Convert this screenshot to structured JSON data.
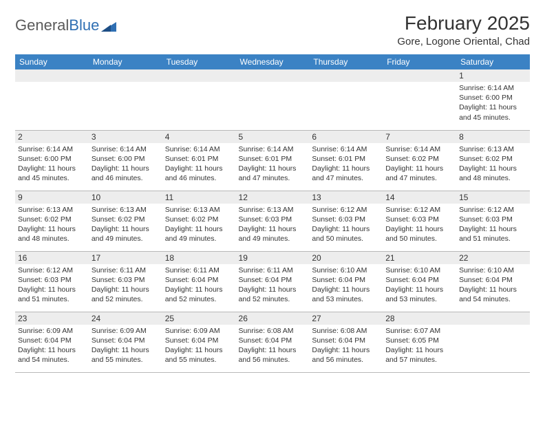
{
  "logo": {
    "word1": "General",
    "word2": "Blue"
  },
  "title": "February 2025",
  "location": "Gore, Logone Oriental, Chad",
  "colors": {
    "header_bg": "#3b82c4",
    "header_text": "#ffffff",
    "daynum_bg": "#ededed",
    "cell_border": "#b8b8b8",
    "text": "#333333",
    "logo_gray": "#5a5a5a",
    "logo_blue": "#2f6fb3"
  },
  "day_headers": [
    "Sunday",
    "Monday",
    "Tuesday",
    "Wednesday",
    "Thursday",
    "Friday",
    "Saturday"
  ],
  "weeks": [
    [
      null,
      null,
      null,
      null,
      null,
      null,
      {
        "n": "1",
        "sunrise": "Sunrise: 6:14 AM",
        "sunset": "Sunset: 6:00 PM",
        "dl1": "Daylight: 11 hours",
        "dl2": "and 45 minutes."
      }
    ],
    [
      {
        "n": "2",
        "sunrise": "Sunrise: 6:14 AM",
        "sunset": "Sunset: 6:00 PM",
        "dl1": "Daylight: 11 hours",
        "dl2": "and 45 minutes."
      },
      {
        "n": "3",
        "sunrise": "Sunrise: 6:14 AM",
        "sunset": "Sunset: 6:00 PM",
        "dl1": "Daylight: 11 hours",
        "dl2": "and 46 minutes."
      },
      {
        "n": "4",
        "sunrise": "Sunrise: 6:14 AM",
        "sunset": "Sunset: 6:01 PM",
        "dl1": "Daylight: 11 hours",
        "dl2": "and 46 minutes."
      },
      {
        "n": "5",
        "sunrise": "Sunrise: 6:14 AM",
        "sunset": "Sunset: 6:01 PM",
        "dl1": "Daylight: 11 hours",
        "dl2": "and 47 minutes."
      },
      {
        "n": "6",
        "sunrise": "Sunrise: 6:14 AM",
        "sunset": "Sunset: 6:01 PM",
        "dl1": "Daylight: 11 hours",
        "dl2": "and 47 minutes."
      },
      {
        "n": "7",
        "sunrise": "Sunrise: 6:14 AM",
        "sunset": "Sunset: 6:02 PM",
        "dl1": "Daylight: 11 hours",
        "dl2": "and 47 minutes."
      },
      {
        "n": "8",
        "sunrise": "Sunrise: 6:13 AM",
        "sunset": "Sunset: 6:02 PM",
        "dl1": "Daylight: 11 hours",
        "dl2": "and 48 minutes."
      }
    ],
    [
      {
        "n": "9",
        "sunrise": "Sunrise: 6:13 AM",
        "sunset": "Sunset: 6:02 PM",
        "dl1": "Daylight: 11 hours",
        "dl2": "and 48 minutes."
      },
      {
        "n": "10",
        "sunrise": "Sunrise: 6:13 AM",
        "sunset": "Sunset: 6:02 PM",
        "dl1": "Daylight: 11 hours",
        "dl2": "and 49 minutes."
      },
      {
        "n": "11",
        "sunrise": "Sunrise: 6:13 AM",
        "sunset": "Sunset: 6:02 PM",
        "dl1": "Daylight: 11 hours",
        "dl2": "and 49 minutes."
      },
      {
        "n": "12",
        "sunrise": "Sunrise: 6:13 AM",
        "sunset": "Sunset: 6:03 PM",
        "dl1": "Daylight: 11 hours",
        "dl2": "and 49 minutes."
      },
      {
        "n": "13",
        "sunrise": "Sunrise: 6:12 AM",
        "sunset": "Sunset: 6:03 PM",
        "dl1": "Daylight: 11 hours",
        "dl2": "and 50 minutes."
      },
      {
        "n": "14",
        "sunrise": "Sunrise: 6:12 AM",
        "sunset": "Sunset: 6:03 PM",
        "dl1": "Daylight: 11 hours",
        "dl2": "and 50 minutes."
      },
      {
        "n": "15",
        "sunrise": "Sunrise: 6:12 AM",
        "sunset": "Sunset: 6:03 PM",
        "dl1": "Daylight: 11 hours",
        "dl2": "and 51 minutes."
      }
    ],
    [
      {
        "n": "16",
        "sunrise": "Sunrise: 6:12 AM",
        "sunset": "Sunset: 6:03 PM",
        "dl1": "Daylight: 11 hours",
        "dl2": "and 51 minutes."
      },
      {
        "n": "17",
        "sunrise": "Sunrise: 6:11 AM",
        "sunset": "Sunset: 6:03 PM",
        "dl1": "Daylight: 11 hours",
        "dl2": "and 52 minutes."
      },
      {
        "n": "18",
        "sunrise": "Sunrise: 6:11 AM",
        "sunset": "Sunset: 6:04 PM",
        "dl1": "Daylight: 11 hours",
        "dl2": "and 52 minutes."
      },
      {
        "n": "19",
        "sunrise": "Sunrise: 6:11 AM",
        "sunset": "Sunset: 6:04 PM",
        "dl1": "Daylight: 11 hours",
        "dl2": "and 52 minutes."
      },
      {
        "n": "20",
        "sunrise": "Sunrise: 6:10 AM",
        "sunset": "Sunset: 6:04 PM",
        "dl1": "Daylight: 11 hours",
        "dl2": "and 53 minutes."
      },
      {
        "n": "21",
        "sunrise": "Sunrise: 6:10 AM",
        "sunset": "Sunset: 6:04 PM",
        "dl1": "Daylight: 11 hours",
        "dl2": "and 53 minutes."
      },
      {
        "n": "22",
        "sunrise": "Sunrise: 6:10 AM",
        "sunset": "Sunset: 6:04 PM",
        "dl1": "Daylight: 11 hours",
        "dl2": "and 54 minutes."
      }
    ],
    [
      {
        "n": "23",
        "sunrise": "Sunrise: 6:09 AM",
        "sunset": "Sunset: 6:04 PM",
        "dl1": "Daylight: 11 hours",
        "dl2": "and 54 minutes."
      },
      {
        "n": "24",
        "sunrise": "Sunrise: 6:09 AM",
        "sunset": "Sunset: 6:04 PM",
        "dl1": "Daylight: 11 hours",
        "dl2": "and 55 minutes."
      },
      {
        "n": "25",
        "sunrise": "Sunrise: 6:09 AM",
        "sunset": "Sunset: 6:04 PM",
        "dl1": "Daylight: 11 hours",
        "dl2": "and 55 minutes."
      },
      {
        "n": "26",
        "sunrise": "Sunrise: 6:08 AM",
        "sunset": "Sunset: 6:04 PM",
        "dl1": "Daylight: 11 hours",
        "dl2": "and 56 minutes."
      },
      {
        "n": "27",
        "sunrise": "Sunrise: 6:08 AM",
        "sunset": "Sunset: 6:04 PM",
        "dl1": "Daylight: 11 hours",
        "dl2": "and 56 minutes."
      },
      {
        "n": "28",
        "sunrise": "Sunrise: 6:07 AM",
        "sunset": "Sunset: 6:05 PM",
        "dl1": "Daylight: 11 hours",
        "dl2": "and 57 minutes."
      },
      null
    ]
  ]
}
